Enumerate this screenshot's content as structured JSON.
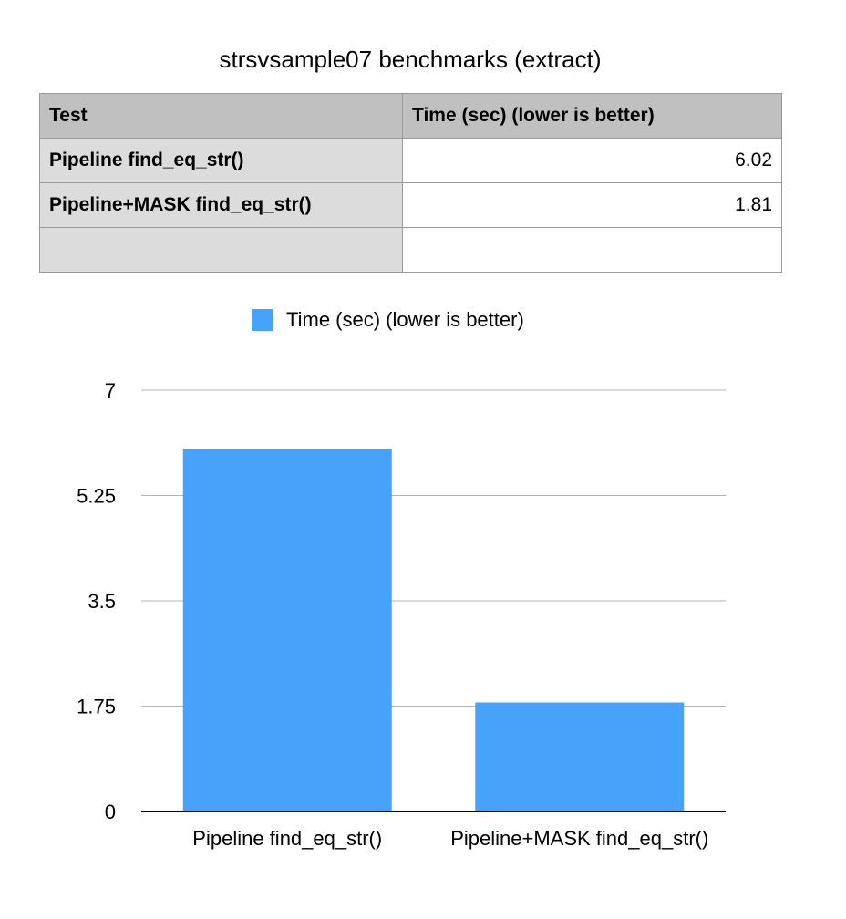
{
  "table": {
    "headers": [
      "Test",
      "Time (sec) (lower is better)"
    ],
    "rows": [
      [
        "Pipeline find_eq_str()",
        "6.02"
      ],
      [
        "Pipeline+MASK find_eq_str()",
        "1.81"
      ],
      [
        "",
        ""
      ]
    ]
  },
  "chart_data": {
    "type": "bar",
    "title": "strsvsample07 benchmarks (extract)",
    "categories": [
      "Pipeline find_eq_str()",
      "Pipeline+MASK find_eq_str()"
    ],
    "series": [
      {
        "name": "Time (sec) (lower is better)",
        "values": [
          6.02,
          1.81
        ],
        "color": "#47a2fa"
      }
    ],
    "ylim": [
      0,
      7
    ],
    "yticks": [
      "0",
      "1.75",
      "3.5",
      "5.25",
      "7"
    ],
    "ytick_values": [
      0,
      1.75,
      3.5,
      5.25,
      7
    ],
    "grid": true,
    "legend_position": "top-center"
  }
}
